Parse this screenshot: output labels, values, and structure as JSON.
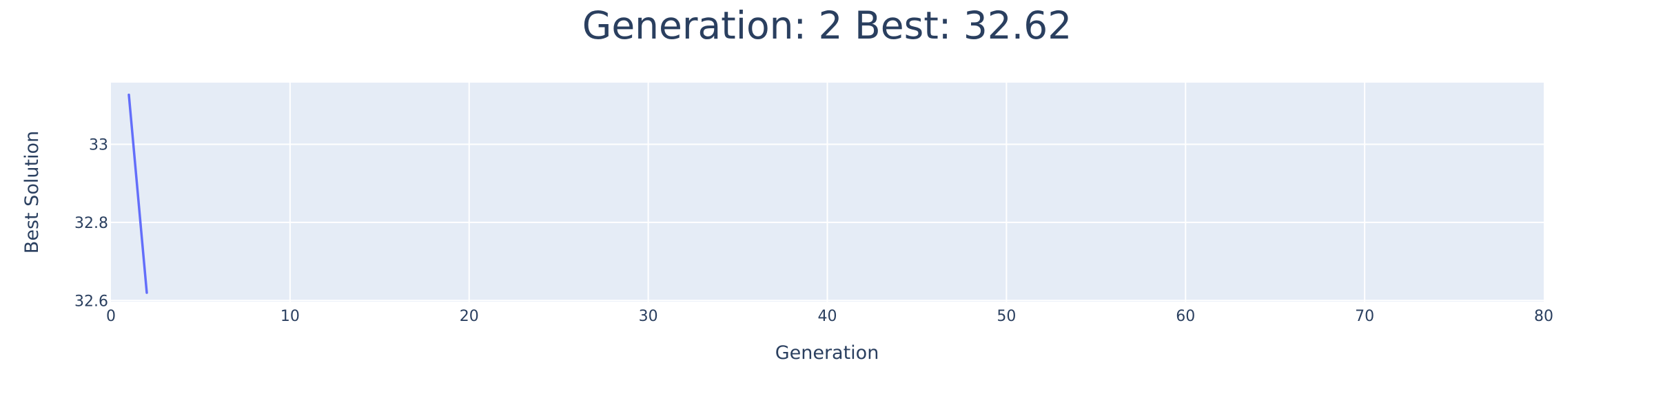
{
  "chart_data": {
    "type": "line",
    "title": "Generation: 2 Best: 32.62",
    "xlabel": "Generation",
    "ylabel": "Best Solution",
    "xlim": [
      0,
      80
    ],
    "ylim": [
      32.597,
      33.158
    ],
    "x_ticks": [
      0,
      10,
      20,
      30,
      40,
      50,
      60,
      70,
      80
    ],
    "y_ticks": [
      32.6,
      32.8,
      33
    ],
    "x_tick_labels": [
      "0",
      "10",
      "20",
      "30",
      "40",
      "50",
      "60",
      "70",
      "80"
    ],
    "y_tick_labels": [
      "32.6",
      "32.8",
      "33"
    ],
    "grid": true,
    "legend": "none",
    "series": [
      {
        "x": [
          1,
          2
        ],
        "values": [
          33.127,
          32.62
        ]
      }
    ]
  },
  "colors": {
    "plot_background": "#e5ecf6",
    "grid": "#ffffff",
    "line": "#636efa",
    "text": "#2a3f5f"
  }
}
